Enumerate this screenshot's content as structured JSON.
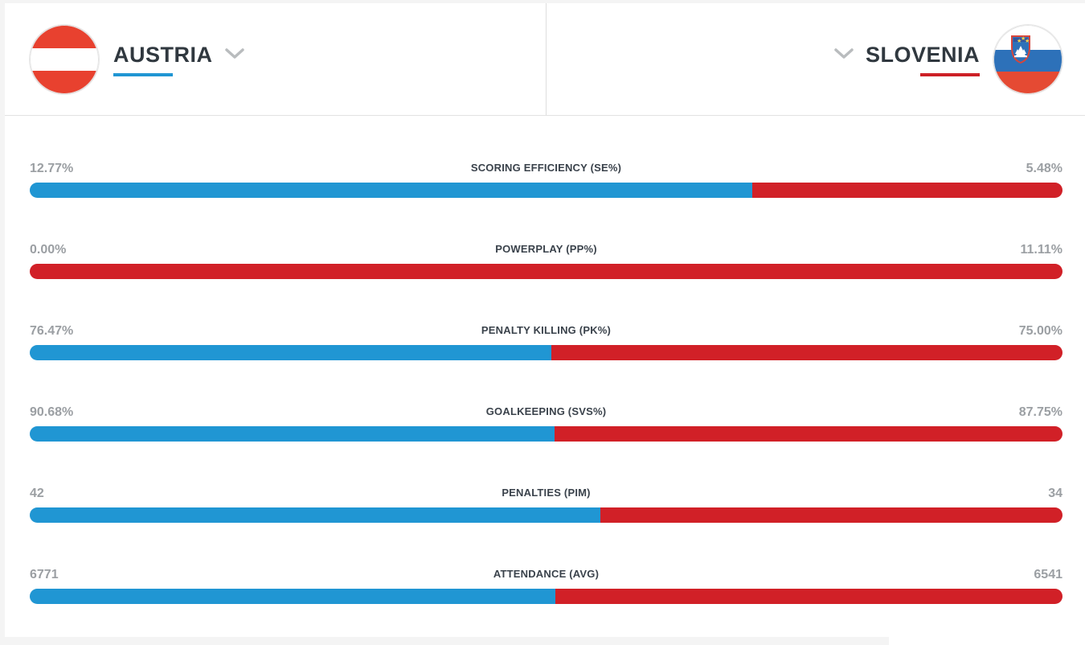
{
  "header": {
    "home": {
      "name": "AUSTRIA",
      "accent": "#2096d3",
      "flag_icon": "austria-flag"
    },
    "away": {
      "name": "SLOVENIA",
      "accent": "#cd2026",
      "flag_icon": "slovenia-flag"
    }
  },
  "bar_colors": {
    "home": "#2096d3",
    "away": "#d12027"
  },
  "stats": [
    {
      "label": "SCORING EFFICIENCY (SE%)",
      "home_display": "12.77%",
      "away_display": "5.48%",
      "home_value": 12.77,
      "away_value": 5.48
    },
    {
      "label": "POWERPLAY (PP%)",
      "home_display": "0.00%",
      "away_display": "11.11%",
      "home_value": 0.0,
      "away_value": 11.11
    },
    {
      "label": "PENALTY KILLING (PK%)",
      "home_display": "76.47%",
      "away_display": "75.00%",
      "home_value": 76.47,
      "away_value": 75.0
    },
    {
      "label": "GOALKEEPING (SVS%)",
      "home_display": "90.68%",
      "away_display": "87.75%",
      "home_value": 90.68,
      "away_value": 87.75
    },
    {
      "label": "PENALTIES (PIM)",
      "home_display": "42",
      "away_display": "34",
      "home_value": 42,
      "away_value": 34
    },
    {
      "label": "ATTENDANCE (AVG)",
      "home_display": "6771",
      "away_display": "6541",
      "home_value": 6771,
      "away_value": 6541
    }
  ],
  "chart_data": {
    "type": "bar",
    "title": "Team statistics comparison: Austria vs Slovenia",
    "categories": [
      "SCORING EFFICIENCY (SE%)",
      "POWERPLAY (PP%)",
      "PENALTY KILLING (PK%)",
      "GOALKEEPING (SVS%)",
      "PENALTIES (PIM)",
      "ATTENDANCE (AVG)"
    ],
    "series": [
      {
        "name": "AUSTRIA",
        "color": "#2096d3",
        "values": [
          12.77,
          0.0,
          76.47,
          90.68,
          42,
          6771
        ]
      },
      {
        "name": "SLOVENIA",
        "color": "#d12027",
        "values": [
          5.48,
          11.11,
          75.0,
          87.75,
          34,
          6541
        ]
      }
    ],
    "legend_position": "top",
    "grid": false,
    "note": "Each row rendered as a single split bar; segment widths proportional to each team's share of the row total."
  }
}
